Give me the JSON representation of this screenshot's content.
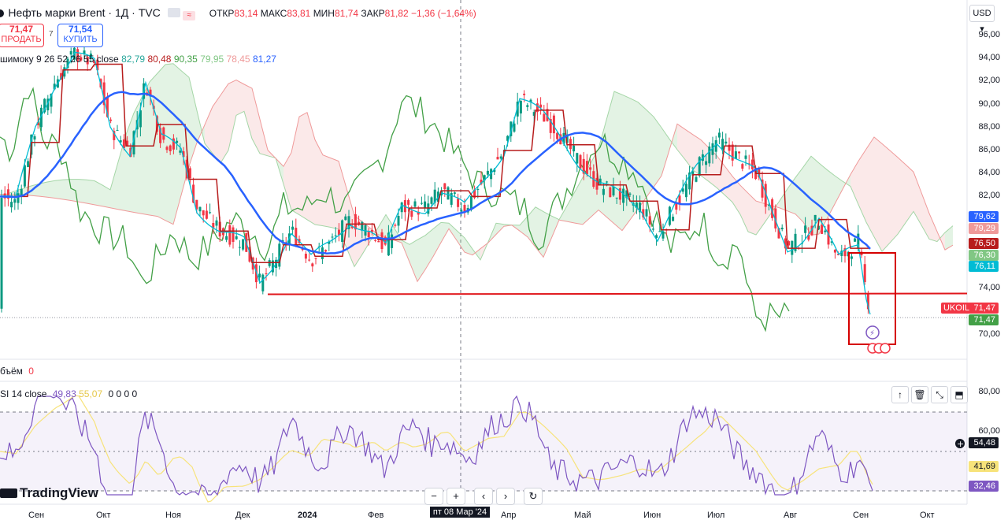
{
  "header": {
    "symbol": "Нефть марки Brent · 1Д · TVC",
    "o_label": "ОТКР",
    "o_value": "83,14",
    "h_label": "МАКС",
    "h_value": "83,81",
    "l_label": "МИН",
    "l_value": "81,74",
    "c_label": "ЗАКР",
    "c_value": "81,82",
    "change": "−1,36 (−1,64%)"
  },
  "trade": {
    "sell_value": "71,47",
    "sell_label": "ПРОДАТЬ",
    "spread": "7",
    "buy_value": "71,54",
    "buy_label": "КУПИТЬ"
  },
  "ichimoku": {
    "label": "шимоку 9 26 52 26 55 close",
    "values": [
      "82,79",
      "80,48",
      "90,35",
      "79,95",
      "78,45",
      "81,27"
    ],
    "colors": [
      "#26a69a",
      "#b71c1c",
      "#43a047",
      "#81c784",
      "#ef9a9a",
      "#2962ff"
    ]
  },
  "volume": {
    "label": "бъём",
    "value": "0"
  },
  "rsi": {
    "label": "SI 14 close",
    "value1": "49,83",
    "value2": "55,07",
    "zeros": "0 0 0 0"
  },
  "currency": "USD",
  "brand": "TradingView",
  "price_axis": [
    "96,00",
    "94,00",
    "92,00",
    "90,00",
    "88,00",
    "86,00",
    "84,00",
    "82,00",
    "74,00",
    "70,00"
  ],
  "rsi_axis": [
    "80,00",
    "60,00"
  ],
  "price_tags": [
    {
      "value": "79,62",
      "color": "#2962ff"
    },
    {
      "value": "79,29",
      "color": "#ef9a9a"
    },
    {
      "value": "76,50",
      "color": "#b71c1c"
    },
    {
      "value": "76,30",
      "color": "#81c784"
    },
    {
      "value": "76,11",
      "color": "#00bcd4"
    },
    {
      "value": "71,47",
      "color": "#f23645"
    },
    {
      "value": "71,47",
      "color": "#43a047"
    }
  ],
  "ukoil_label": "UKOIL",
  "rsi_tags": [
    {
      "value": "54,48",
      "color": "#131722"
    },
    {
      "value": "41,69",
      "color": "#f7e37a"
    },
    {
      "value": "32,46",
      "color": "#7e57c2"
    }
  ],
  "time_axis": [
    "Сен",
    "Окт",
    "Ноя",
    "Дек",
    "2024",
    "Фев",
    "Апр",
    "Май",
    "Июн",
    "Июл",
    "Авг",
    "Сен",
    "Окт"
  ],
  "crosshair_date": "пт 08 Мар '24",
  "toolbar": {
    "minus": "−",
    "plus": "+",
    "left": "‹",
    "right": "›",
    "reset": "↻"
  },
  "chart_data": {
    "type": "candlestick",
    "x": [
      "Сен",
      "Окт",
      "Ноя",
      "Дек",
      "2024",
      "Фев",
      "Мар",
      "Апр",
      "Май",
      "Июн",
      "Июл",
      "Авг",
      "Сен"
    ],
    "close": [
      93.5,
      90.5,
      86.5,
      77.5,
      78.0,
      82.5,
      83.0,
      90.5,
      83.0,
      82.0,
      87.0,
      77.0,
      71.47
    ],
    "ylim": [
      68.5,
      97.0
    ],
    "support_level": 73.5,
    "rsi_range": [
      30,
      70
    ]
  }
}
